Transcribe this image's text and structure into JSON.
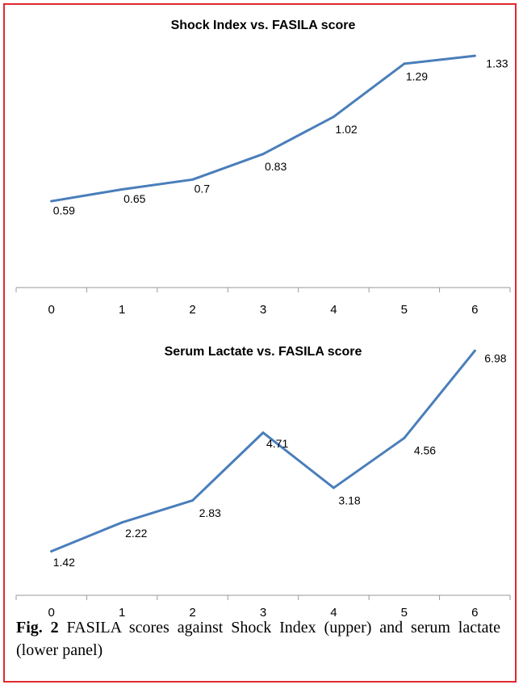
{
  "caption": {
    "label": "Fig. 2",
    "text": "FASILA scores against Shock Index (upper) and serum lactate (lower panel)"
  },
  "colors": {
    "series": "#4a7ebb",
    "border": "#e0292e",
    "axis": "#9a9a9a"
  },
  "chart_data": [
    {
      "type": "line",
      "title": "Shock Index  vs. FASILA score",
      "categories": [
        "0",
        "1",
        "2",
        "3",
        "4",
        "5",
        "6"
      ],
      "series": [
        {
          "values": [
            0.59,
            0.65,
            0.7,
            0.83,
            1.02,
            1.29,
            1.33
          ]
        }
      ],
      "data_labels": [
        "0.59",
        "0.65",
        "0.7",
        "0.83",
        "1.02",
        "1.29",
        "1.33"
      ],
      "ylim": [
        0.15,
        1.45
      ],
      "grid": false,
      "legend": "none"
    },
    {
      "type": "line",
      "title": "Serum Lactate vs. FASILA score",
      "categories": [
        "0",
        "1",
        "2",
        "3",
        "4",
        "5",
        "6"
      ],
      "series": [
        {
          "values": [
            1.42,
            2.22,
            2.83,
            4.71,
            3.18,
            4.56,
            6.98
          ]
        }
      ],
      "data_labels": [
        "1.42",
        "2.22",
        "2.83",
        "4.71",
        "3.18",
        "4.56",
        "6.98"
      ],
      "ylim": [
        0.2,
        7.3
      ],
      "grid": false,
      "legend": "none"
    }
  ]
}
